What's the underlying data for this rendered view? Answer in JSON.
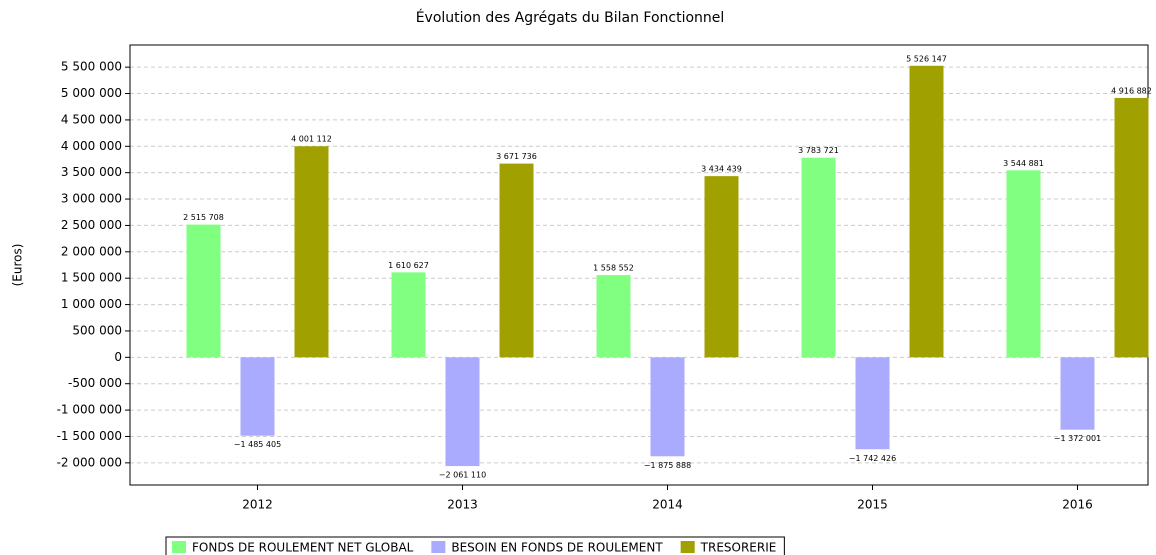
{
  "chart_data": {
    "type": "bar",
    "title": "Évolution des Agrégats du Bilan Fonctionnel",
    "y_label": "(Euros)",
    "categories": [
      "2012",
      "2013",
      "2014",
      "2015",
      "2016"
    ],
    "series": [
      {
        "name": "FONDS DE ROULEMENT NET GLOBAL",
        "color": "#80ff80",
        "values": [
          2515708,
          1610627,
          1558552,
          3783721,
          3544881
        ],
        "value_labels": [
          "2 515 708",
          "1 610 627",
          "1 558 552",
          "3 783 721",
          "3 544 881"
        ]
      },
      {
        "name": "BESOIN EN FONDS DE ROULEMENT",
        "color": "#aaaaff",
        "values": [
          -1485405,
          -2061110,
          -1875888,
          -1742426,
          -1372001
        ],
        "value_labels": [
          "−1 485 405",
          "−2 061 110",
          "−1 875 888",
          "−1 742 426",
          "−1 372 001"
        ]
      },
      {
        "name": "TRESORERIE",
        "color": "#a0a000",
        "values": [
          4001112,
          3671736,
          3434439,
          5526147,
          4916882
        ],
        "value_labels": [
          "4 001 112",
          "3 671 736",
          "3 434 439",
          "5 526 147",
          "4 916 882"
        ]
      }
    ],
    "ylim": [
      -2420000,
      5920000
    ],
    "yticks": [
      {
        "value": -2000000,
        "label": "-2 000 000"
      },
      {
        "value": -1500000,
        "label": "-1 500 000"
      },
      {
        "value": -1000000,
        "label": "-1 000 000"
      },
      {
        "value": -500000,
        "label": "-500 000"
      },
      0,
      {
        "value": 500000,
        "label": "500 000"
      },
      {
        "value": 1000000,
        "label": "1 000 000"
      },
      {
        "value": 1500000,
        "label": "1 500 000"
      },
      {
        "value": 2000000,
        "label": "2 000 000"
      },
      {
        "value": 2500000,
        "label": "2 500 000"
      },
      {
        "value": 3000000,
        "label": "3 000 000"
      },
      {
        "value": 3500000,
        "label": "3 500 000"
      },
      {
        "value": 4000000,
        "label": "4 000 000"
      },
      {
        "value": 4500000,
        "label": "4 500 000"
      },
      {
        "value": 5000000,
        "label": "5 000 000"
      },
      {
        "value": 5500000,
        "label": "5 500 000"
      }
    ],
    "grid": true,
    "legend": "bottom"
  }
}
